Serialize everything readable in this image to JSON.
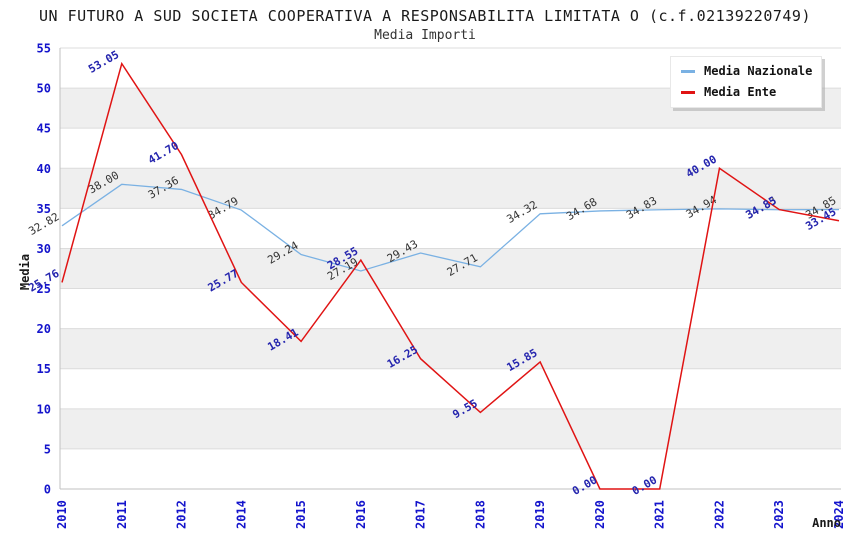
{
  "header": {
    "title": "UN FUTURO A SUD SOCIETA COOPERATIVA A RESPONSABILITA LIMITATA O (c.f.02139220749)",
    "subtitle": "Media Importi"
  },
  "chart_data": {
    "type": "line",
    "title": "Media Importi",
    "xlabel": "Anno",
    "ylabel": "Media",
    "ylim": [
      0,
      55
    ],
    "ytick_step": 5,
    "grid": true,
    "legend_position": "top-right",
    "categories": [
      "2010",
      "2011",
      "2012",
      "2014",
      "2015",
      "2016",
      "2017",
      "2018",
      "2019",
      "2020",
      "2021",
      "2022",
      "2023",
      "2024"
    ],
    "series": [
      {
        "name": "Media Nazionale",
        "color": "#7AB1E3",
        "label_color": "#333333",
        "values": [
          32.82,
          38.0,
          37.36,
          34.79,
          29.24,
          27.19,
          29.43,
          27.71,
          34.32,
          34.68,
          34.83,
          34.94,
          34.83,
          34.85
        ]
      },
      {
        "name": "Media Ente",
        "color": "#E01414",
        "label_color": "#2525AE",
        "values": [
          25.76,
          53.05,
          41.7,
          25.77,
          18.41,
          28.55,
          16.25,
          9.55,
          15.85,
          0.0,
          0.0,
          40.0,
          34.85,
          33.45
        ]
      }
    ],
    "styles": {
      "band_colors": [
        "#FFFFFF",
        "#EFEFEF"
      ],
      "grid_color": "#DCDCDC",
      "axis_line_color": "#C0C0C0",
      "tick_label_color": "#1414CC"
    }
  }
}
